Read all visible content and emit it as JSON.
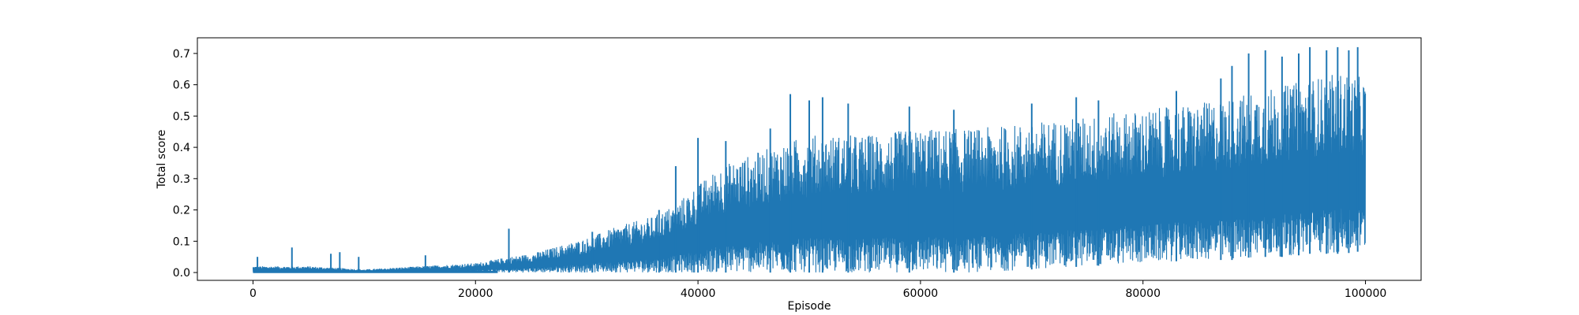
{
  "chart_data": {
    "type": "line",
    "title": "",
    "xlabel": "Episode",
    "ylabel": "Total score",
    "xlim": [
      -5000,
      105000
    ],
    "ylim": [
      -0.025,
      0.75
    ],
    "xticks": [
      0,
      20000,
      40000,
      60000,
      80000,
      100000
    ],
    "xtick_labels": [
      "0",
      "20000",
      "40000",
      "60000",
      "80000",
      "100000"
    ],
    "yticks": [
      0.0,
      0.1,
      0.2,
      0.3,
      0.4,
      0.5,
      0.6,
      0.7
    ],
    "ytick_labels": [
      "0.0",
      "0.1",
      "0.2",
      "0.3",
      "0.4",
      "0.5",
      "0.6",
      "0.7"
    ],
    "grid": false,
    "series": [
      {
        "name": "Total score",
        "color": "#1f77b4",
        "episodes": 100000,
        "envelope": {
          "x": [
            0,
            5000,
            10000,
            15000,
            20000,
            23000,
            25000,
            28000,
            30000,
            33000,
            36000,
            38000,
            40000,
            42000,
            45000,
            48000,
            50000,
            55000,
            60000,
            65000,
            70000,
            75000,
            80000,
            85000,
            88000,
            90000,
            93000,
            95000,
            98000,
            100000
          ],
          "min": [
            0.0,
            0.0,
            0.0,
            0.0,
            0.0,
            0.0,
            0.0,
            0.0,
            0.0,
            0.0,
            0.0,
            0.0,
            0.0,
            0.0,
            0.0,
            0.0,
            0.0,
            0.0,
            0.0,
            0.0,
            0.01,
            0.02,
            0.03,
            0.04,
            0.04,
            0.05,
            0.05,
            0.06,
            0.06,
            0.07
          ],
          "max": [
            0.02,
            0.02,
            0.01,
            0.02,
            0.03,
            0.05,
            0.06,
            0.09,
            0.11,
            0.15,
            0.18,
            0.22,
            0.28,
            0.34,
            0.38,
            0.42,
            0.44,
            0.44,
            0.46,
            0.46,
            0.48,
            0.5,
            0.52,
            0.54,
            0.56,
            0.58,
            0.6,
            0.62,
            0.64,
            0.62
          ]
        },
        "spikes": [
          {
            "x": 400,
            "y": 0.05
          },
          {
            "x": 3500,
            "y": 0.08
          },
          {
            "x": 7000,
            "y": 0.06
          },
          {
            "x": 7800,
            "y": 0.065
          },
          {
            "x": 9500,
            "y": 0.05
          },
          {
            "x": 15500,
            "y": 0.055
          },
          {
            "x": 23000,
            "y": 0.14
          },
          {
            "x": 30500,
            "y": 0.13
          },
          {
            "x": 36500,
            "y": 0.2
          },
          {
            "x": 38000,
            "y": 0.34
          },
          {
            "x": 40000,
            "y": 0.43
          },
          {
            "x": 42500,
            "y": 0.42
          },
          {
            "x": 46500,
            "y": 0.46
          },
          {
            "x": 48300,
            "y": 0.57
          },
          {
            "x": 50000,
            "y": 0.55
          },
          {
            "x": 51200,
            "y": 0.56
          },
          {
            "x": 53500,
            "y": 0.54
          },
          {
            "x": 59000,
            "y": 0.53
          },
          {
            "x": 63000,
            "y": 0.52
          },
          {
            "x": 70000,
            "y": 0.54
          },
          {
            "x": 74000,
            "y": 0.56
          },
          {
            "x": 76000,
            "y": 0.55
          },
          {
            "x": 83000,
            "y": 0.58
          },
          {
            "x": 87000,
            "y": 0.62
          },
          {
            "x": 88000,
            "y": 0.66
          },
          {
            "x": 89500,
            "y": 0.7
          },
          {
            "x": 91000,
            "y": 0.71
          },
          {
            "x": 92500,
            "y": 0.69
          },
          {
            "x": 94000,
            "y": 0.7
          },
          {
            "x": 95000,
            "y": 0.72
          },
          {
            "x": 96500,
            "y": 0.71
          },
          {
            "x": 97500,
            "y": 0.72
          },
          {
            "x": 98500,
            "y": 0.71
          },
          {
            "x": 99300,
            "y": 0.72
          }
        ]
      }
    ]
  }
}
